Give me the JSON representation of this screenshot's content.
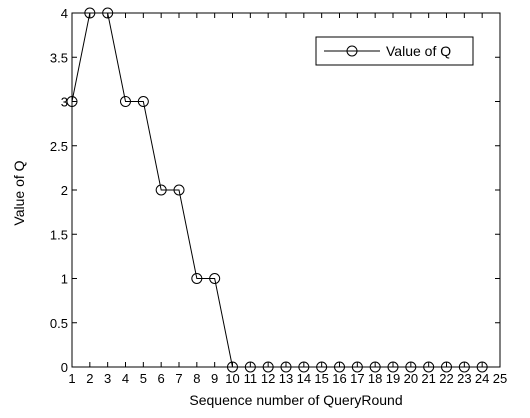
{
  "chart_data": {
    "type": "line",
    "title": "",
    "xlabel": "Sequence number of QueryRound",
    "ylabel": "Value of Q",
    "xlim": [
      1,
      25
    ],
    "ylim": [
      0,
      4
    ],
    "xticks": [
      1,
      2,
      3,
      4,
      5,
      6,
      7,
      8,
      9,
      10,
      11,
      12,
      13,
      14,
      15,
      16,
      17,
      18,
      19,
      20,
      21,
      22,
      23,
      24,
      25
    ],
    "yticks": [
      0,
      0.5,
      1,
      1.5,
      2,
      2.5,
      3,
      3.5,
      4
    ],
    "ytick_labels": [
      "0",
      "0.5",
      "1",
      "1.5",
      "2",
      "2.5",
      "3",
      "3.5",
      "4"
    ],
    "grid": false,
    "legend_position": "top-right",
    "series": [
      {
        "name": "Value of Q",
        "marker": "circle",
        "color": "#000000",
        "x": [
          1,
          2,
          3,
          4,
          5,
          6,
          7,
          8,
          9,
          10,
          11,
          12,
          13,
          14,
          15,
          16,
          17,
          18,
          19,
          20,
          21,
          22,
          23,
          24
        ],
        "y": [
          3,
          4,
          4,
          3,
          3,
          2,
          2,
          1,
          1,
          0,
          0,
          0,
          0,
          0,
          0,
          0,
          0,
          0,
          0,
          0,
          0,
          0,
          0,
          0
        ]
      }
    ]
  }
}
